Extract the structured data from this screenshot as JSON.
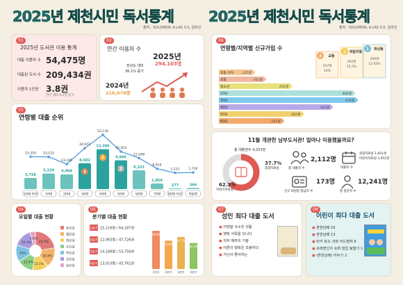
{
  "header": {
    "title_left": "2025년 제천시민 독서통계",
    "title_right": "2025년 제천시민 독서통계",
    "source_left": "출처 : SOLOMON, K-LAS 3.0, 일마인",
    "source_right": "출처 : SOLOMON, K-LAS 3.0, 일마인"
  },
  "p01": {
    "num": "01",
    "title": "2025년 도서관 이용 통계",
    "users_label": "대출 이용자 수",
    "users_value": "54,475명",
    "loans_label": "대출된 도서 수",
    "loans_value": "209,434권",
    "per_label": "이용자 1인당",
    "per_value": "3.8권",
    "per_note": "전년 대비 0.2권 증가"
  },
  "p02": {
    "num": "02",
    "title": "연간 이용자 수",
    "y2025": "2025년",
    "v2025": "294,103명",
    "compare": "전년도 대비",
    "rate": "36.1% 증가",
    "y2024": "2024년",
    "v2024": "216,078명"
  },
  "p03": {
    "num": "03",
    "title": "연령별 대출 순위",
    "rank_badges": [
      "1",
      "2",
      "3"
    ]
  },
  "p04": {
    "num": "04",
    "title": "요일별 대출 현황",
    "legend": [
      "토요일",
      "월요일",
      "화요일",
      "수요일",
      "목요일",
      "금요일",
      "일요일"
    ]
  },
  "p05": {
    "num": "05",
    "title": "분기별 대출 현황",
    "rows": [
      {
        "q": "1분기",
        "text": "15,216명 / 64,187권"
      },
      {
        "q": "2분기",
        "text": "12,063명 / 47,726권"
      },
      {
        "q": "3분기",
        "text": "14,186명 / 53,759권"
      },
      {
        "q": "4분기",
        "text": "13,010명 / 43,762권"
      }
    ]
  },
  "p06": {
    "num": "06",
    "title": "연령별/지역별 신규가입 수",
    "podium": [
      {
        "rank": "3",
        "name": "교동",
        "count": "237명",
        "pct": "10%"
      },
      {
        "rank": "2",
        "name": "의림지동",
        "count": "292명",
        "pct": "12.3%"
      },
      {
        "rank": "1",
        "name": "화산동",
        "count": "300명",
        "pct": "12.63%"
      }
    ]
  },
  "p_survey": {
    "title": "11월 개관한 남부도서관! 얼마나 이용했을까요?",
    "total_label": "총 대출권수",
    "total_value": "4,253권",
    "donut_pct_a": "37.7%",
    "donut_pct_a_label": "종합자료실",
    "donut_pct_b": "62.3%",
    "donut_pct_b_label": "어린이자료실",
    "users_label": "총 대출자 수",
    "users_value": "2,112명",
    "room_label": "대출자 수",
    "room_a": "종합자료실 1,601권",
    "room_b": "어린이자료실 2,652권",
    "new_label": "신규 회원증 발급자 수",
    "new_value": "173명",
    "visit_label": "총 방문자 수",
    "visit_value": "12,241명"
  },
  "p07": {
    "num": "07",
    "title": "성인 최다 대출 도서",
    "books": [
      "어떤말 사소한 것들",
      "햇빛 서쪽을 잇니다",
      "저자 떼주의 기술",
      "어른의 행복은 조용하다",
      "가난이 좋아하는"
    ]
  },
  "p08": {
    "num": "08",
    "title": "어린이 최다 대출 도서",
    "books": [
      "흔한남매 16",
      "흔한남매 13",
      "타키 포오 과학 어드벤처 6",
      "슈퍼변신의 슈퍼 잠입 탐험기 1",
      "(흔한남매) 어두기 2"
    ]
  },
  "colors": {
    "teal": "#2ba29d",
    "red": "#e05a55",
    "gold": "#f0a640",
    "purple": "#9b8cd1",
    "blue": "#5b9fe0"
  },
  "chart_data": [
    {
      "type": "bar",
      "title": "연령별 대출 순위",
      "categories": [
        "10대 이하",
        "10대",
        "20대",
        "30대",
        "40대",
        "50대",
        "60대",
        "70대",
        "80대 이상",
        "미분류"
      ],
      "series": [
        {
          "name": "대출",
          "values": [
            3726,
            5229,
            4968,
            8682,
            13380,
            9666,
            6323,
            1858,
            277,
            366
          ]
        },
        {
          "name": "이용자",
          "values": [
            23310,
            23122,
            13195,
            34972,
            53136,
            30303,
            21548,
            6914,
            1211,
            1720
          ]
        }
      ],
      "bar_labels": [
        "3,726",
        "5,229",
        "4,968",
        "8,682",
        "13,380",
        "9,666",
        "6,323",
        "1,858",
        "277",
        "366"
      ],
      "line_labels": [
        "23,310",
        "23,122",
        "13,195",
        "34,972",
        "53,136",
        "30,303",
        "21,548",
        "6,914",
        "1,211",
        "1,720"
      ]
    },
    {
      "type": "pie",
      "title": "요일별 대출 현황",
      "categories": [
        "토요일",
        "월요일",
        "화요일",
        "수요일",
        "목요일",
        "금요일",
        "일요일"
      ],
      "values": [
        22.5,
        16.8,
        13.1,
        13.6,
        14,
        15.4,
        4.6
      ],
      "labels": [
        "22.5%",
        "16.8%",
        "13.1%",
        "13.6%",
        "14%",
        "15.4%",
        "4.6%"
      ]
    },
    {
      "type": "bar",
      "title": "분기별 대출 현황",
      "categories": [
        "1분기",
        "2분기",
        "3분기",
        "4분기"
      ],
      "values": [
        64187,
        47726,
        53759,
        43762
      ],
      "labels": [
        "30.6%",
        "22.8%",
        "25.7%",
        "20.9%"
      ]
    },
    {
      "type": "bar",
      "title": "연령별/지역별 신규가입 수",
      "categories": [
        "초등 이하",
        "초등",
        "청소년",
        "20대",
        "30대",
        "40대",
        "50대",
        "60대"
      ],
      "values": [
        125,
        163,
        252,
        468,
        478,
        392,
        292,
        225
      ],
      "labels": [
        "125명",
        "163명",
        "252명",
        "468명",
        "478명",
        "392명",
        "292명",
        "225명"
      ]
    }
  ]
}
